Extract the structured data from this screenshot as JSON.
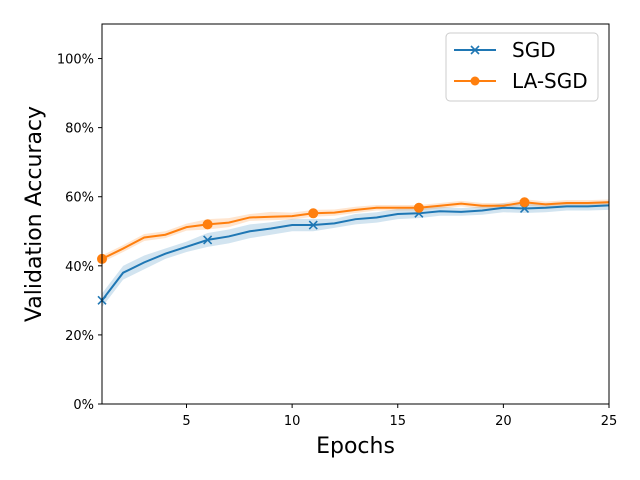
{
  "chart_data": {
    "type": "line",
    "title": "",
    "xlabel": "Epochs",
    "ylabel": "Validation Accuracy",
    "xlim": [
      1,
      25
    ],
    "ylim": [
      0,
      1.1
    ],
    "x_ticks": [
      5,
      10,
      15,
      20,
      25
    ],
    "y_ticks": [
      0,
      0.2,
      0.4,
      0.6,
      0.8,
      1.0
    ],
    "y_tick_labels": [
      "0%",
      "20%",
      "40%",
      "60%",
      "80%",
      "100%"
    ],
    "grid": false,
    "legend_position": "top-right",
    "x": [
      1,
      2,
      3,
      4,
      5,
      6,
      7,
      8,
      9,
      10,
      11,
      12,
      13,
      14,
      15,
      16,
      17,
      18,
      19,
      20,
      21,
      22,
      23,
      24,
      25
    ],
    "series": [
      {
        "name": "SGD",
        "color": "#1f77b4",
        "marker": "x",
        "marker_every": [
          1,
          6,
          11,
          16,
          21
        ],
        "values": [
          0.3,
          0.38,
          0.41,
          0.435,
          0.455,
          0.475,
          0.485,
          0.5,
          0.508,
          0.518,
          0.518,
          0.523,
          0.535,
          0.54,
          0.55,
          0.552,
          0.558,
          0.556,
          0.56,
          0.568,
          0.566,
          0.568,
          0.572,
          0.572,
          0.575
        ],
        "lower": [
          0.28,
          0.36,
          0.39,
          0.42,
          0.44,
          0.455,
          0.465,
          0.48,
          0.49,
          0.5,
          0.5,
          0.51,
          0.52,
          0.525,
          0.535,
          0.538,
          0.545,
          0.545,
          0.548,
          0.555,
          0.553,
          0.555,
          0.56,
          0.56,
          0.562
        ],
        "upper": [
          0.32,
          0.4,
          0.43,
          0.45,
          0.47,
          0.495,
          0.505,
          0.52,
          0.526,
          0.536,
          0.536,
          0.536,
          0.55,
          0.555,
          0.565,
          0.566,
          0.571,
          0.567,
          0.572,
          0.581,
          0.579,
          0.581,
          0.584,
          0.584,
          0.588
        ]
      },
      {
        "name": "LA-SGD",
        "color": "#ff7f0e",
        "marker": "o",
        "marker_every": [
          1,
          6,
          11,
          16,
          21
        ],
        "values": [
          0.42,
          0.45,
          0.482,
          0.49,
          0.512,
          0.52,
          0.525,
          0.54,
          0.542,
          0.544,
          0.552,
          0.554,
          0.562,
          0.568,
          0.568,
          0.568,
          0.574,
          0.58,
          0.574,
          0.574,
          0.584,
          0.578,
          0.582,
          0.582,
          0.584
        ],
        "lower": [
          0.41,
          0.44,
          0.472,
          0.48,
          0.502,
          0.505,
          0.512,
          0.53,
          0.532,
          0.534,
          0.542,
          0.545,
          0.553,
          0.56,
          0.56,
          0.56,
          0.566,
          0.572,
          0.566,
          0.566,
          0.575,
          0.57,
          0.574,
          0.574,
          0.576
        ],
        "upper": [
          0.43,
          0.46,
          0.492,
          0.5,
          0.522,
          0.535,
          0.538,
          0.55,
          0.556,
          0.554,
          0.562,
          0.563,
          0.571,
          0.576,
          0.576,
          0.576,
          0.582,
          0.588,
          0.582,
          0.582,
          0.593,
          0.586,
          0.59,
          0.59,
          0.592
        ]
      }
    ]
  }
}
